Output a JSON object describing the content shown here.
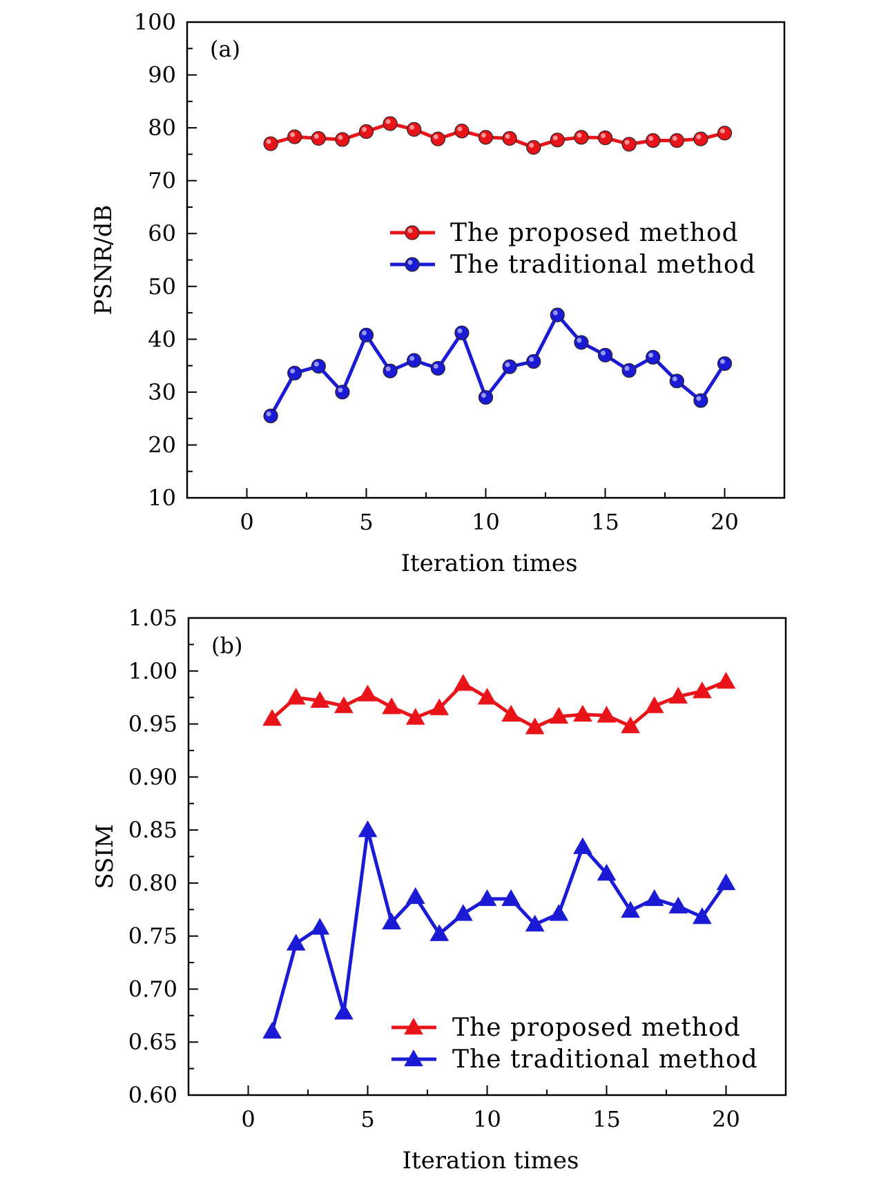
{
  "chart_data": [
    {
      "type": "line",
      "panel": "(a)",
      "xlabel": "Iteration times",
      "ylabel": "PSNR/dB",
      "xlim": [
        -2.5,
        22.5
      ],
      "ylim": [
        10,
        100
      ],
      "xticks": [
        0,
        5,
        10,
        15,
        20
      ],
      "yticks": [
        10,
        20,
        30,
        40,
        50,
        60,
        70,
        80,
        90,
        100
      ],
      "grid": false,
      "legend_position": "center-right",
      "x": [
        1,
        2,
        3,
        4,
        5,
        6,
        7,
        8,
        9,
        10,
        11,
        12,
        13,
        14,
        15,
        16,
        17,
        18,
        19,
        20
      ],
      "series": [
        {
          "name": "The proposed method",
          "marker": "circle",
          "color": "#e8141a",
          "values": [
            77.0,
            78.3,
            78.0,
            77.8,
            79.3,
            80.8,
            79.7,
            77.9,
            79.4,
            78.2,
            78.0,
            76.3,
            77.7,
            78.2,
            78.1,
            76.9,
            77.6,
            77.6,
            77.9,
            79.0
          ]
        },
        {
          "name": "The traditional method",
          "marker": "circle",
          "color": "#1b1bd6",
          "values": [
            25.5,
            33.6,
            34.9,
            30.0,
            40.8,
            34.0,
            36.0,
            34.5,
            41.2,
            29.0,
            34.8,
            35.8,
            44.6,
            39.4,
            37.0,
            34.1,
            36.6,
            32.1,
            28.4,
            35.4
          ]
        }
      ]
    },
    {
      "type": "line",
      "panel": "(b)",
      "xlabel": "Iteration times",
      "ylabel": "SSIM",
      "xlim": [
        -2.5,
        22.5
      ],
      "ylim": [
        0.6,
        1.05
      ],
      "xticks": [
        0,
        5,
        10,
        15,
        20
      ],
      "yticks": [
        0.6,
        0.65,
        0.7,
        0.75,
        0.8,
        0.85,
        0.9,
        0.95,
        1.0,
        1.05
      ],
      "ytick_labels": [
        "0.60",
        "0.65",
        "0.70",
        "0.75",
        "0.80",
        "0.85",
        "0.90",
        "0.95",
        "1.00",
        "1.05"
      ],
      "grid": false,
      "legend_position": "bottom-right",
      "x": [
        1,
        2,
        3,
        4,
        5,
        6,
        7,
        8,
        9,
        10,
        11,
        12,
        13,
        14,
        15,
        16,
        17,
        18,
        19,
        20
      ],
      "series": [
        {
          "name": "The proposed method",
          "marker": "triangle",
          "color": "#e8141a",
          "values": [
            0.955,
            0.975,
            0.972,
            0.967,
            0.978,
            0.966,
            0.956,
            0.965,
            0.988,
            0.975,
            0.959,
            0.947,
            0.957,
            0.959,
            0.958,
            0.948,
            0.967,
            0.976,
            0.981,
            0.99
          ]
        },
        {
          "name": "The traditional method",
          "marker": "triangle",
          "color": "#1b1bd6",
          "values": [
            0.66,
            0.743,
            0.758,
            0.678,
            0.85,
            0.763,
            0.787,
            0.752,
            0.771,
            0.785,
            0.785,
            0.761,
            0.771,
            0.834,
            0.809,
            0.774,
            0.785,
            0.778,
            0.768,
            0.8
          ]
        }
      ]
    }
  ]
}
